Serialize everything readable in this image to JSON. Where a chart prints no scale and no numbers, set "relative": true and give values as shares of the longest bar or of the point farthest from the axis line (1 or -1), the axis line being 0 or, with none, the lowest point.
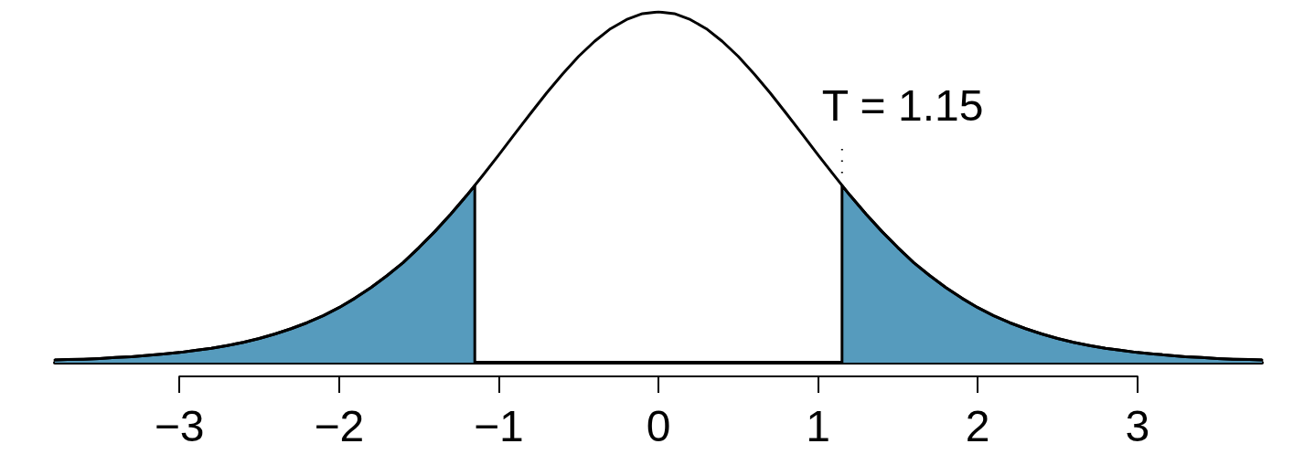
{
  "chart_data": {
    "type": "line",
    "relative": true,
    "annotations": [
      {
        "text": "T = 1.15",
        "x": 1.15,
        "y": 0.505
      }
    ],
    "xlim": [
      -3.78,
      3.78
    ],
    "xticks": [
      {
        "value": -3,
        "label": "−3"
      },
      {
        "value": -2,
        "label": "−2"
      },
      {
        "value": -1,
        "label": "−1"
      },
      0,
      1,
      2,
      3
    ],
    "series": [
      {
        "type": "area",
        "color": "#569bbd",
        "x": [
          -3.78,
          -3.7,
          -3.6,
          -3.5,
          -3.4,
          -3.3,
          -3.2,
          -3.1,
          -3,
          -2.9,
          -2.8,
          -2.7,
          -2.6,
          -2.5,
          -2.4,
          -2.3,
          -2.2,
          -2.1,
          -2,
          -1.9,
          -1.8,
          -1.7,
          -1.6,
          -1.5,
          -1.4,
          -1.3,
          -1.2,
          -1.15,
          -1.15
        ],
        "values": [
          0.008,
          0.009,
          0.01,
          0.012,
          0.015,
          0.017,
          0.021,
          0.025,
          0.029,
          0.035,
          0.041,
          0.049,
          0.058,
          0.069,
          0.082,
          0.097,
          0.114,
          0.134,
          0.157,
          0.184,
          0.214,
          0.248,
          0.285,
          0.328,
          0.374,
          0.424,
          0.477,
          0.505,
          0
        ]
      },
      {
        "type": "area",
        "color": "#569bbd",
        "x": [
          1.15,
          1.15,
          1.2,
          1.3,
          1.4,
          1.5,
          1.6,
          1.7,
          1.8,
          1.9,
          2,
          2.1,
          2.2,
          2.3,
          2.4,
          2.5,
          2.6,
          2.7,
          2.8,
          2.9,
          3,
          3.1,
          3.2,
          3.3,
          3.4,
          3.5,
          3.6,
          3.7,
          3.78
        ],
        "values": [
          0,
          0.505,
          0.477,
          0.424,
          0.374,
          0.328,
          0.285,
          0.248,
          0.214,
          0.184,
          0.157,
          0.134,
          0.114,
          0.097,
          0.082,
          0.069,
          0.058,
          0.049,
          0.041,
          0.035,
          0.029,
          0.025,
          0.021,
          0.017,
          0.015,
          0.012,
          0.01,
          0.009,
          0.008
        ]
      },
      {
        "color": "#000000",
        "x": [
          -3.78,
          -3.7,
          -3.6,
          -3.5,
          -3.4,
          -3.3,
          -3.2,
          -3.1,
          -3,
          -2.9,
          -2.8,
          -2.7,
          -2.6,
          -2.5,
          -2.4,
          -2.3,
          -2.2,
          -2.1,
          -2,
          -1.9,
          -1.8,
          -1.7,
          -1.6,
          -1.5,
          -1.4,
          -1.3,
          -1.2,
          -1.1,
          -1,
          -0.9,
          -0.8,
          -0.7,
          -0.6,
          -0.5,
          -0.4,
          -0.3,
          -0.2,
          -0.1,
          0,
          0.1,
          0.2,
          0.3,
          0.4,
          0.5,
          0.6,
          0.7,
          0.8,
          0.9,
          1,
          1.1,
          1.2,
          1.3,
          1.4,
          1.5,
          1.6,
          1.7,
          1.8,
          1.9,
          2,
          2.1,
          2.2,
          2.3,
          2.4,
          2.5,
          2.6,
          2.7,
          2.8,
          2.9,
          3,
          3.1,
          3.2,
          3.3,
          3.4,
          3.5,
          3.6,
          3.7,
          3.78
        ],
        "values": [
          0.008,
          0.009,
          0.01,
          0.012,
          0.015,
          0.017,
          0.021,
          0.025,
          0.029,
          0.035,
          0.041,
          0.049,
          0.058,
          0.069,
          0.082,
          0.097,
          0.114,
          0.134,
          0.157,
          0.184,
          0.214,
          0.248,
          0.285,
          0.328,
          0.374,
          0.424,
          0.477,
          0.534,
          0.592,
          0.652,
          0.711,
          0.769,
          0.823,
          0.873,
          0.916,
          0.952,
          0.978,
          0.995,
          1,
          0.995,
          0.978,
          0.952,
          0.916,
          0.873,
          0.823,
          0.769,
          0.711,
          0.652,
          0.592,
          0.534,
          0.477,
          0.424,
          0.374,
          0.328,
          0.285,
          0.248,
          0.214,
          0.184,
          0.157,
          0.134,
          0.114,
          0.097,
          0.082,
          0.069,
          0.058,
          0.049,
          0.041,
          0.035,
          0.029,
          0.025,
          0.021,
          0.017,
          0.015,
          0.012,
          0.01,
          0.009,
          0.008
        ]
      }
    ]
  }
}
